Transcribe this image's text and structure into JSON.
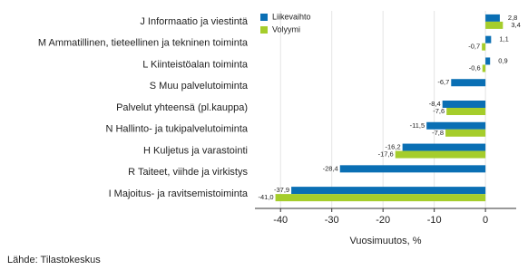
{
  "chart_data": {
    "type": "hbar",
    "categories": [
      "J Informaatio ja viestintä",
      "M Ammatillinen, tieteellinen ja tekninen toiminta",
      "L Kiinteistöalan toiminta",
      "S Muu palvelutoiminta",
      "Palvelut yhteensä (pl.kauppa)",
      "N Hallinto- ja tukipalvelutoiminta",
      "H Kuljetus ja varastointi",
      "R Taiteet, viihde ja virkistys",
      "I Majoitus- ja ravitsemistoiminta"
    ],
    "series": [
      {
        "name": "Liikevaihto",
        "color": "#0a6fb4",
        "values": [
          2.8,
          1.1,
          0.9,
          -6.7,
          -8.4,
          -11.5,
          -16.2,
          -28.4,
          -37.9
        ],
        "value_labels": [
          "2,8",
          "1,1",
          "0,9",
          "-6,7",
          "-8,4",
          "-11,5",
          "-16,2",
          "-28,4",
          "-37,9"
        ]
      },
      {
        "name": "Volyymi",
        "color": "#a5cd2b",
        "values": [
          3.4,
          -0.7,
          -0.6,
          null,
          -7.6,
          -7.8,
          -17.6,
          null,
          -41.0
        ],
        "value_labels": [
          "3,4",
          "-0,7",
          "-0,6",
          null,
          "-7,6",
          "-7,8",
          "-17,6",
          null,
          "-41,0"
        ]
      }
    ],
    "x_label": "Vuosimuutos, %",
    "xlim": [
      -45,
      6
    ],
    "xticks": [
      -40,
      -30,
      -20,
      -10,
      0
    ],
    "grid": true,
    "source": "Lähde: Tilastokeskus"
  }
}
